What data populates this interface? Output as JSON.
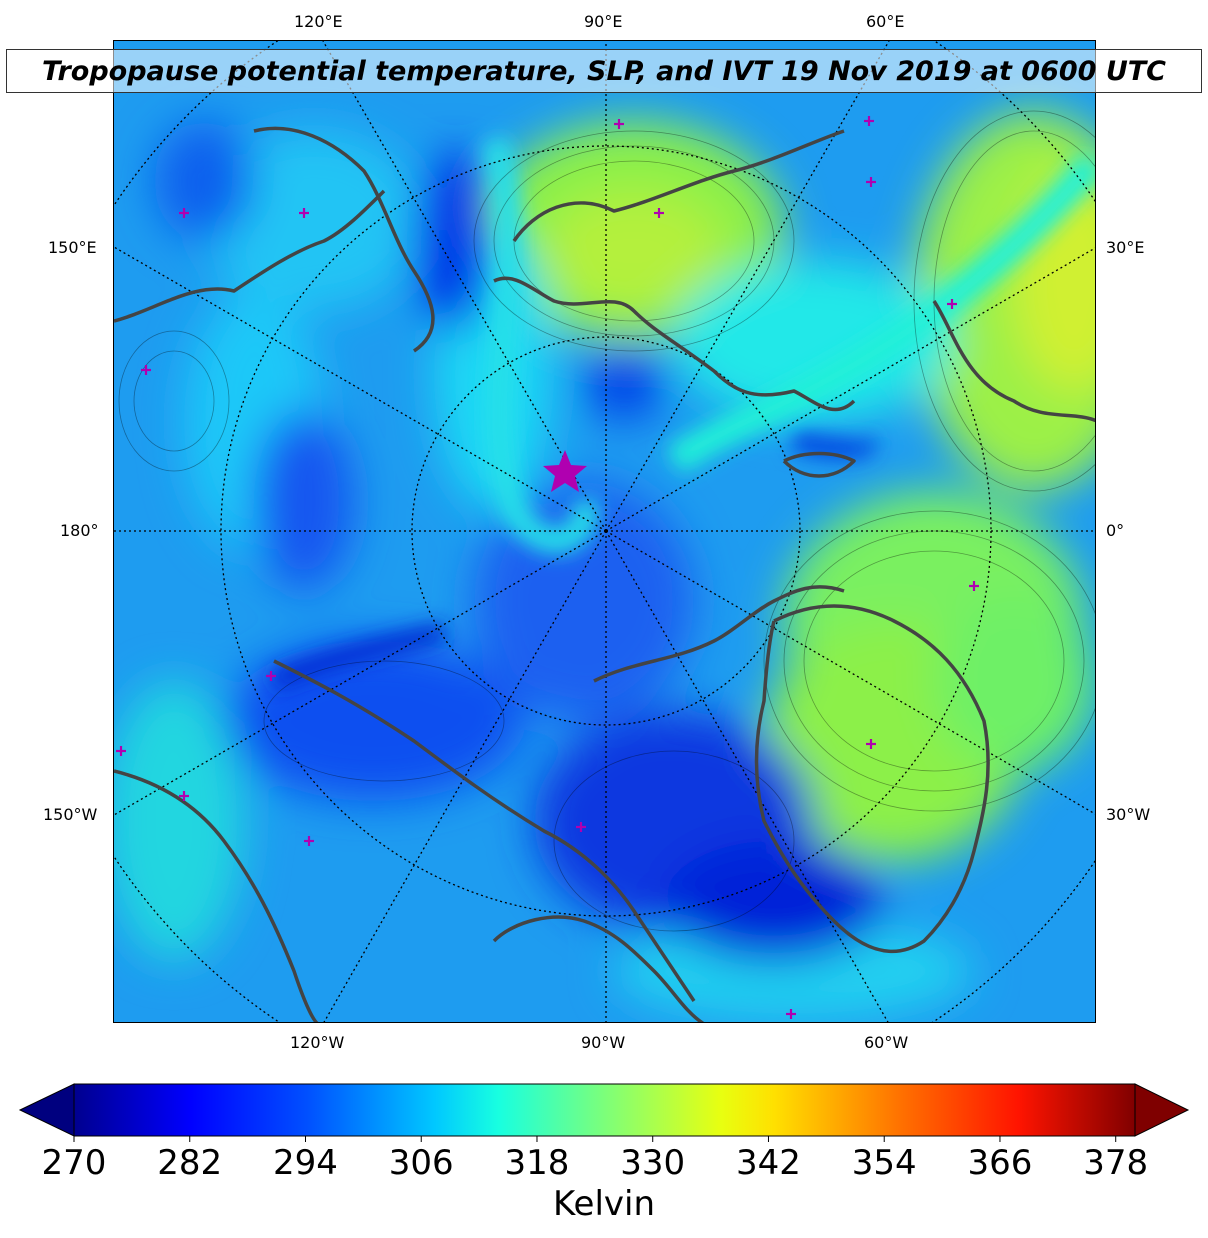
{
  "title": "Tropopause potential temperature, SLP, and IVT 19 Nov 2019 at 0600 UTC",
  "map": {
    "projection": "north-polar-stereographic",
    "field": "tropopause potential temperature",
    "lon_labels_top": [
      "120°E",
      "90°E",
      "60°E"
    ],
    "lon_labels_bottom": [
      "120°W",
      "90°W",
      "60°W"
    ],
    "lon_labels_left": [
      "150°E",
      "180°",
      "150°W"
    ],
    "lon_labels_right": [
      "30°E",
      "0°",
      "30°W"
    ],
    "coastline_color": "#444444",
    "marker_color": "#b000b0",
    "marker_symbol": "star"
  },
  "colorbar": {
    "colormap": "jet",
    "extend": "both",
    "vmin": 270,
    "vmax": 380,
    "ticks": [
      "270",
      "282",
      "294",
      "306",
      "318",
      "330",
      "342",
      "354",
      "366",
      "378"
    ],
    "units": "Kelvin"
  }
}
